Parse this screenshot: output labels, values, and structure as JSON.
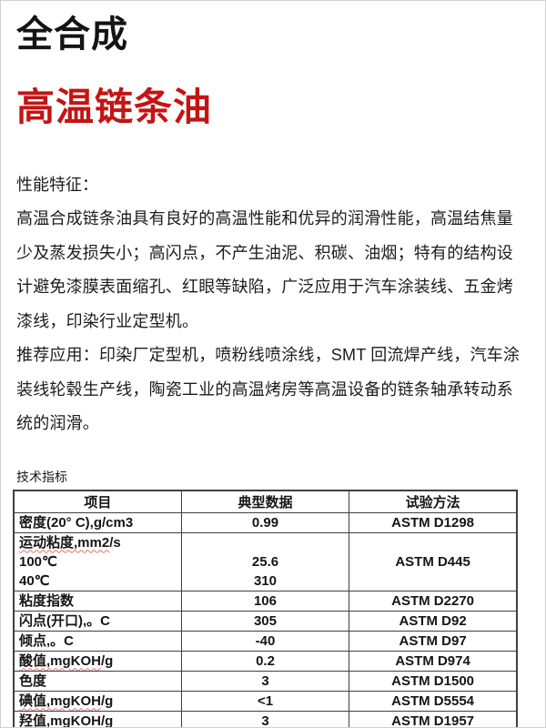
{
  "header": {
    "title": "全合成",
    "subtitle": "高温链条油"
  },
  "content": {
    "perf_heading": "性能特征：",
    "perf_lines": [
      "高温合成链条油具有良好的高温性能和优异的润滑性能，高温结焦量",
      "少及蒸发损失小；高闪点，不产生油泥、积碳、油烟；特有的结构设",
      "计避免漆膜表面缩孔、红眼等缺陷，广泛应用于汽车涂装线、五金烤",
      "漆线，印染行业定型机。"
    ],
    "app_lines": [
      "推荐应用：印染厂定型机，喷粉线喷涂线，SMT 回流焊产线，汽车涂",
      "装线轮毂生产线，陶瓷工业的高温烤房等高温设备的链条轴承转动系",
      "统的润滑。"
    ],
    "table_caption": "技术指标"
  },
  "colors": {
    "accent_red": "#C41414",
    "spellcheck_red": "#DD7070",
    "table_border_gray": "#3F3F3F"
  },
  "table": {
    "headers": [
      "项目",
      "典型数据",
      "试验方法"
    ],
    "rows": [
      {
        "item": [
          {
            "t1": "密度(20° C),g/cm3"
          }
        ],
        "values": [
          "0.99"
        ],
        "method": "ASTM D1298"
      },
      {
        "item": [
          {
            "w": "运动粘度,mm2",
            "t2": "/s"
          },
          {
            "t1": "100℃"
          },
          {
            "t1": "40℃"
          }
        ],
        "values": [
          "",
          "25.6",
          "310"
        ],
        "method": "ASTM D445"
      },
      {
        "item": [
          {
            "t1": "粘度指数"
          }
        ],
        "values": [
          "106"
        ],
        "method": "ASTM D2270"
      },
      {
        "item": [
          {
            "t1": "闪点(开口),。C"
          }
        ],
        "values": [
          "305"
        ],
        "method": "ASTM D92"
      },
      {
        "item": [
          {
            "t1": "倾点,。C"
          }
        ],
        "values": [
          "-40"
        ],
        "method": "ASTM D97"
      },
      {
        "item": [
          {
            "w": "酸值,mgKOH",
            "t2": "/g"
          }
        ],
        "values": [
          "0.2"
        ],
        "method": "ASTM D974"
      },
      {
        "item": [
          {
            "t1": "色度"
          }
        ],
        "values": [
          "3"
        ],
        "method": "ASTM D1500"
      },
      {
        "item": [
          {
            "w": "碘值,mgKOH",
            "t2": "/g"
          }
        ],
        "values": [
          "<1"
        ],
        "method": "ASTM D5554"
      },
      {
        "item": [
          {
            "w": "羟值,mgKOH",
            "t2": "/g"
          }
        ],
        "values": [
          "3"
        ],
        "method": "ASTM D1957"
      }
    ]
  }
}
